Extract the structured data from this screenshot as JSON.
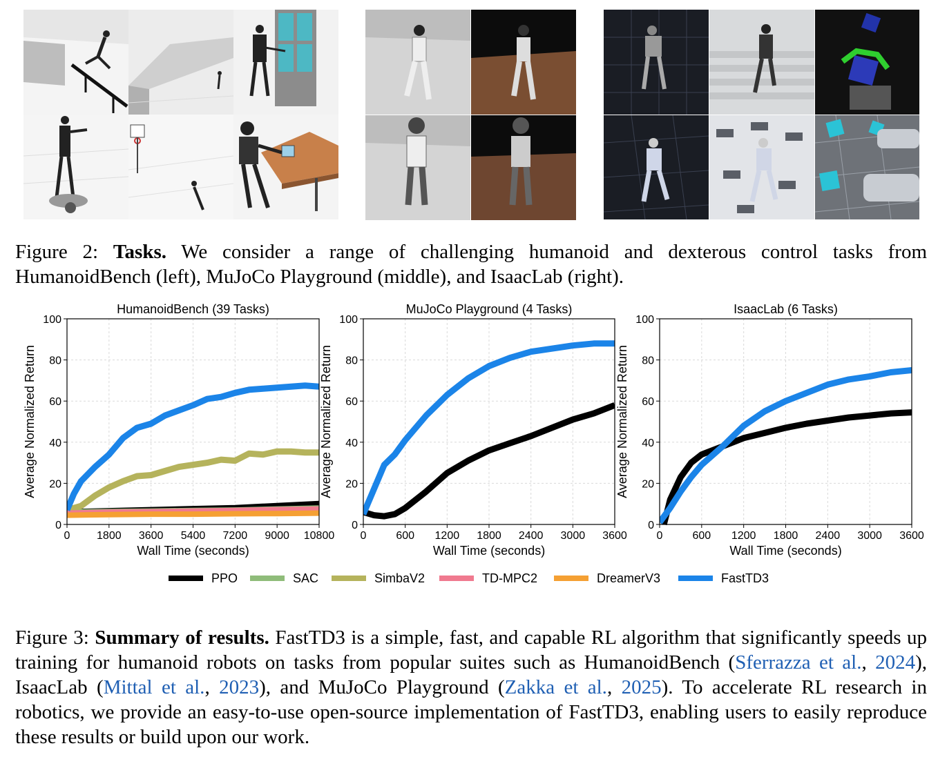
{
  "figure2": {
    "label": "Figure 2:",
    "title": "Tasks.",
    "text": "We consider a range of challenging humanoid and dexterous control tasks from HumanoidBench (left), MuJoCo Playground (middle), and IsaacLab (right)."
  },
  "chart_data": [
    {
      "type": "line",
      "title": "HumanoidBench (39 Tasks)",
      "xlabel": "Wall Time (seconds)",
      "ylabel": "Average Normalized Return",
      "xlim": [
        0,
        10800
      ],
      "ylim": [
        0,
        100
      ],
      "xticks": [
        "0",
        "1800",
        "3600",
        "5400",
        "7200",
        "9000",
        "10800"
      ],
      "yticks": [
        "0",
        "20",
        "40",
        "60",
        "80",
        "100"
      ],
      "grid": true,
      "series": [
        {
          "name": "PPO",
          "color": "#000000",
          "x": [
            0,
            1800,
            3600,
            5400,
            7200,
            9000,
            10800
          ],
          "y": [
            6,
            6.5,
            7,
            7.5,
            8,
            9,
            10
          ]
        },
        {
          "name": "SAC",
          "color": "#8fbc7a",
          "x": [
            0,
            1800,
            3600,
            5400,
            7200,
            9000,
            10800
          ],
          "y": [
            6,
            6.3,
            6.5,
            6.8,
            7,
            7.5,
            8
          ]
        },
        {
          "name": "SimbaV2",
          "color": "#b5b35c",
          "x": [
            0,
            600,
            1200,
            1800,
            2400,
            3000,
            3600,
            4200,
            4800,
            5400,
            6000,
            6600,
            7200,
            7800,
            8400,
            9000,
            9600,
            10200,
            10800
          ],
          "y": [
            7,
            9,
            14,
            18,
            21,
            23.5,
            24,
            26,
            28,
            29,
            30,
            31.5,
            31,
            34.5,
            34,
            35.5,
            35.5,
            35,
            35
          ]
        },
        {
          "name": "TD-MPC2",
          "color": "#f07a8f",
          "x": [
            0,
            1800,
            3600,
            5400,
            7200,
            9000,
            10800
          ],
          "y": [
            5.5,
            6,
            6.2,
            6.5,
            6.8,
            7.2,
            7.5
          ]
        },
        {
          "name": "DreamerV3",
          "color": "#f5a033",
          "x": [
            0,
            1800,
            3600,
            5400,
            7200,
            9000,
            10800
          ],
          "y": [
            4.5,
            4.8,
            5,
            5,
            5.2,
            5.3,
            5.5
          ]
        },
        {
          "name": "FastTD3",
          "color": "#1b84e8",
          "x": [
            0,
            300,
            600,
            1200,
            1800,
            2400,
            3000,
            3600,
            4200,
            4800,
            5400,
            6000,
            6600,
            7200,
            7800,
            8400,
            9000,
            9600,
            10200,
            10800
          ],
          "y": [
            7,
            15,
            21,
            28,
            34,
            42,
            47,
            49,
            53,
            55.5,
            58,
            61,
            62,
            64,
            65.5,
            66,
            66.5,
            67,
            67.5,
            67
          ]
        }
      ]
    },
    {
      "type": "line",
      "title": "MuJoCo Playground (4 Tasks)",
      "xlabel": "Wall Time (seconds)",
      "ylabel": "Average Normalized Return",
      "xlim": [
        0,
        3600
      ],
      "ylim": [
        0,
        100
      ],
      "xticks": [
        "0",
        "600",
        "1200",
        "1800",
        "2400",
        "3000",
        "3600"
      ],
      "yticks": [
        "0",
        "20",
        "40",
        "60",
        "80",
        "100"
      ],
      "grid": true,
      "series": [
        {
          "name": "PPO",
          "color": "#000000",
          "x": [
            0,
            150,
            300,
            450,
            600,
            900,
            1200,
            1500,
            1800,
            2100,
            2400,
            2700,
            3000,
            3300,
            3600
          ],
          "y": [
            6,
            4.5,
            4,
            5,
            8,
            16,
            25,
            31,
            36,
            39.5,
            43,
            47,
            51,
            54,
            58
          ]
        },
        {
          "name": "FastTD3",
          "color": "#1b84e8",
          "x": [
            0,
            150,
            300,
            450,
            600,
            900,
            1200,
            1500,
            1800,
            2100,
            2400,
            2700,
            3000,
            3300,
            3600
          ],
          "y": [
            5,
            17,
            29,
            34,
            41,
            53,
            63,
            71,
            77,
            81,
            84,
            85.5,
            87,
            88,
            88
          ]
        }
      ]
    },
    {
      "type": "line",
      "title": "IsaacLab (6 Tasks)",
      "xlabel": "Wall Time (seconds)",
      "ylabel": "Average Normalized Return",
      "xlim": [
        0,
        3600
      ],
      "ylim": [
        0,
        100
      ],
      "xticks": [
        "0",
        "600",
        "1200",
        "1800",
        "2400",
        "3000",
        "3600"
      ],
      "yticks": [
        "0",
        "20",
        "40",
        "60",
        "80",
        "100"
      ],
      "grid": true,
      "series": [
        {
          "name": "PPO",
          "color": "#000000",
          "x": [
            60,
            150,
            300,
            450,
            600,
            900,
            1200,
            1500,
            1800,
            2100,
            2400,
            2700,
            3000,
            3300,
            3600
          ],
          "y": [
            0,
            12,
            23,
            30,
            34,
            38,
            42,
            44.5,
            47,
            49,
            50.5,
            52,
            53,
            54,
            54.5
          ]
        },
        {
          "name": "FastTD3",
          "color": "#1b84e8",
          "x": [
            0,
            150,
            300,
            450,
            600,
            900,
            1200,
            1500,
            1800,
            2100,
            2400,
            2700,
            3000,
            3300,
            3600
          ],
          "y": [
            1,
            8,
            16,
            23,
            29,
            38,
            48,
            55,
            60,
            64,
            68,
            70.5,
            72,
            74,
            75
          ]
        }
      ]
    }
  ],
  "legend": [
    {
      "name": "PPO",
      "color": "#000000"
    },
    {
      "name": "SAC",
      "color": "#8fbc7a"
    },
    {
      "name": "SimbaV2",
      "color": "#b5b35c"
    },
    {
      "name": "TD-MPC2",
      "color": "#f07a8f"
    },
    {
      "name": "DreamerV3",
      "color": "#f5a033"
    },
    {
      "name": "FastTD3",
      "color": "#1b84e8"
    }
  ],
  "figure3": {
    "label": "Figure 3:",
    "title": "Summary of results.",
    "text_a": "FastTD3 is a simple, fast, and capable RL algorithm that significantly speeds up training for humanoid robots on tasks from popular suites such as HumanoidBench (",
    "cite1_name": "Sferrazza et al.",
    "cite1_year": "2024",
    "text_b": "), IsaacLab (",
    "cite2_name": "Mittal et al.",
    "cite2_year": "2023",
    "text_c": "), and MuJoCo Playground (",
    "cite3_name": "Zakka et al.",
    "cite3_year": "2025",
    "text_d": "). To accelerate RL research in robotics, we provide an easy-to-use open-source implementation of FastTD3, enabling users to easily reproduce these results or build upon our work.",
    "sep": ", "
  }
}
